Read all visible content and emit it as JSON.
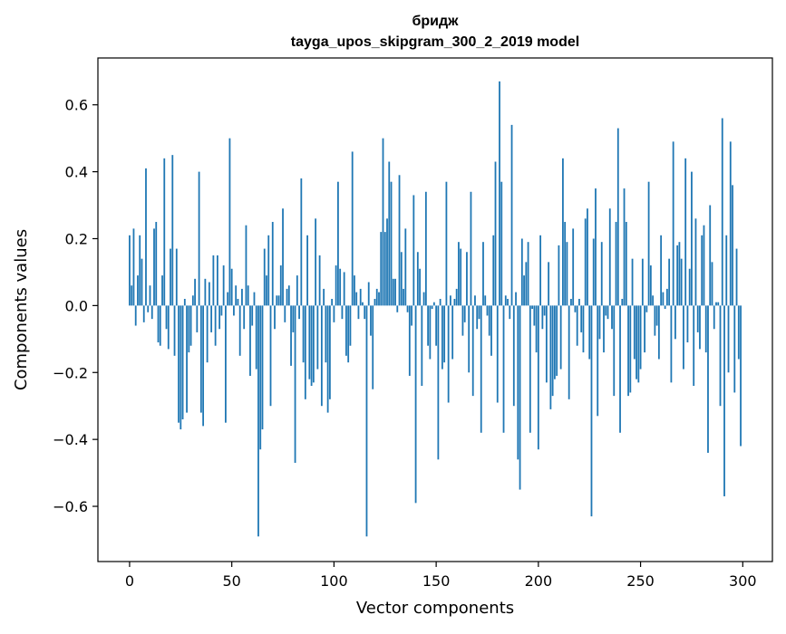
{
  "chart_data": {
    "type": "bar",
    "title": "бридж",
    "subtitle": "tayga_upos_skipgram_300_2_2019 model",
    "xlabel": "Vector components",
    "ylabel": "Components values",
    "xlim": [
      -15.5,
      314.5
    ],
    "ylim": [
      -0.765,
      0.74
    ],
    "x_ticks": [
      0,
      50,
      100,
      150,
      200,
      250,
      300
    ],
    "x_tick_labels": [
      "0",
      "50",
      "100",
      "150",
      "200",
      "250",
      "300"
    ],
    "y_ticks": [
      -0.6,
      -0.4,
      -0.2,
      0.0,
      0.2,
      0.4,
      0.6
    ],
    "y_tick_labels": [
      "−0.6",
      "−0.4",
      "−0.2",
      "0.0",
      "0.2",
      "0.4",
      "0.6"
    ],
    "grid": false,
    "bar_color": "#1f77b4",
    "x_start": 0,
    "values": [
      0.21,
      0.06,
      0.23,
      -0.06,
      0.09,
      0.21,
      0.14,
      -0.05,
      0.41,
      -0.02,
      0.06,
      -0.04,
      0.23,
      0.25,
      -0.11,
      -0.12,
      0.09,
      0.44,
      -0.07,
      -0.13,
      0.17,
      0.45,
      -0.15,
      0.17,
      -0.35,
      -0.37,
      -0.34,
      0.02,
      -0.32,
      -0.14,
      -0.12,
      0.03,
      0.08,
      -0.08,
      0.4,
      -0.32,
      -0.36,
      0.08,
      -0.17,
      0.07,
      -0.08,
      0.15,
      -0.12,
      0.15,
      -0.07,
      -0.03,
      0.12,
      -0.35,
      0.04,
      0.5,
      0.11,
      -0.03,
      0.06,
      0.02,
      -0.15,
      0.05,
      -0.07,
      0.24,
      0.06,
      -0.21,
      -0.06,
      0.04,
      -0.19,
      -0.69,
      -0.43,
      -0.37,
      0.17,
      0.09,
      0.21,
      -0.3,
      0.25,
      -0.07,
      0.03,
      0.03,
      0.12,
      0.29,
      -0.05,
      0.05,
      0.06,
      -0.18,
      -0.08,
      -0.47,
      0.09,
      -0.04,
      0.38,
      -0.17,
      -0.28,
      0.21,
      -0.22,
      -0.24,
      -0.23,
      0.26,
      -0.19,
      0.15,
      -0.3,
      0.05,
      -0.17,
      -0.32,
      -0.28,
      0.02,
      -0.05,
      0.12,
      0.37,
      0.11,
      -0.04,
      0.1,
      -0.15,
      -0.17,
      -0.12,
      0.46,
      0.09,
      0.04,
      -0.04,
      0.05,
      0.01,
      -0.04,
      -0.69,
      0.07,
      -0.09,
      -0.25,
      0.02,
      0.05,
      0.04,
      0.22,
      0.5,
      0.22,
      0.26,
      0.43,
      0.37,
      0.08,
      0.08,
      -0.02,
      0.39,
      0.16,
      0.05,
      0.23,
      -0.02,
      -0.21,
      -0.06,
      0.33,
      -0.59,
      0.16,
      0.11,
      -0.24,
      0.04,
      0.34,
      -0.12,
      -0.16,
      -0.01,
      0.01,
      -0.12,
      -0.46,
      0.02,
      -0.19,
      -0.17,
      0.37,
      -0.29,
      0.03,
      -0.16,
      0.02,
      0.05,
      0.19,
      0.17,
      -0.09,
      -0.05,
      0.16,
      -0.2,
      0.34,
      -0.27,
      0.03,
      -0.07,
      -0.04,
      -0.38,
      0.19,
      0.03,
      -0.03,
      -0.09,
      -0.15,
      0.21,
      0.43,
      -0.29,
      0.67,
      0.37,
      -0.38,
      0.03,
      0.02,
      -0.04,
      0.54,
      -0.3,
      0.04,
      -0.46,
      -0.55,
      0.2,
      0.09,
      0.13,
      0.19,
      -0.38,
      -0.01,
      -0.06,
      -0.14,
      -0.43,
      0.21,
      -0.07,
      -0.03,
      -0.23,
      0.13,
      -0.31,
      -0.27,
      -0.22,
      -0.21,
      0.18,
      -0.19,
      0.44,
      0.25,
      0.19,
      -0.28,
      0.02,
      0.23,
      -0.02,
      -0.12,
      0.02,
      -0.08,
      -0.14,
      0.26,
      0.29,
      -0.16,
      -0.63,
      0.2,
      0.35,
      -0.33,
      -0.1,
      0.19,
      -0.14,
      -0.03,
      -0.04,
      0.29,
      -0.07,
      -0.27,
      0.25,
      0.53,
      -0.38,
      0.02,
      0.35,
      0.25,
      -0.27,
      -0.26,
      0.14,
      -0.16,
      -0.22,
      -0.23,
      -0.19,
      0.14,
      -0.14,
      -0.02,
      0.37,
      0.12,
      0.03,
      -0.09,
      -0.06,
      -0.16,
      0.21,
      0.04,
      -0.01,
      0.05,
      0.14,
      -0.23,
      0.49,
      -0.1,
      0.18,
      0.19,
      0.14,
      -0.19,
      0.44,
      -0.11,
      0.11,
      0.4,
      -0.24,
      0.26,
      -0.08,
      -0.13,
      0.21,
      0.24,
      -0.14,
      -0.44,
      0.3,
      0.13,
      -0.07,
      0.01,
      0.01,
      -0.3,
      0.56,
      -0.57,
      0.21,
      -0.2,
      0.49,
      0.36,
      -0.26,
      0.17,
      -0.16,
      -0.42
    ]
  }
}
